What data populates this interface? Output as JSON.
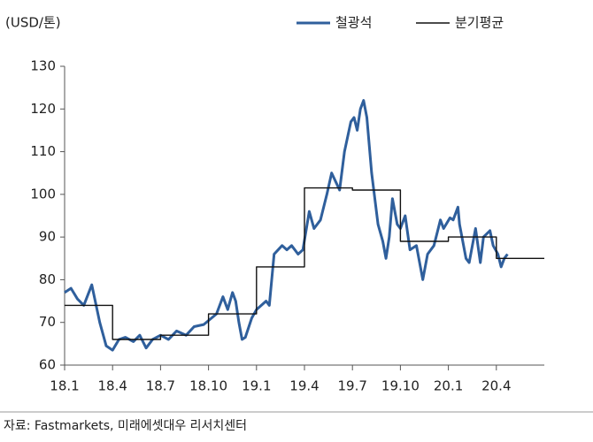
{
  "chart_data": {
    "type": "line",
    "y_unit_label": "(USD/톤)",
    "source": "자료: Fastmarkets, 미래에셋대우 리서치센터",
    "legend": "top-right",
    "grid": false,
    "xlim": [
      0,
      30
    ],
    "xticks": [
      {
        "value": 0,
        "label": "18.1"
      },
      {
        "value": 3,
        "label": "18.4"
      },
      {
        "value": 6,
        "label": "18.7"
      },
      {
        "value": 9,
        "label": "18.10"
      },
      {
        "value": 12,
        "label": "19.1"
      },
      {
        "value": 15,
        "label": "19.4"
      },
      {
        "value": 18,
        "label": "19.7"
      },
      {
        "value": 21,
        "label": "19.10"
      },
      {
        "value": 24,
        "label": "20.1"
      },
      {
        "value": 27,
        "label": "20.4"
      }
    ],
    "ylim": [
      60,
      130
    ],
    "yticks": [
      60,
      70,
      80,
      90,
      100,
      110,
      120,
      130
    ],
    "series": [
      {
        "name": "철광석",
        "color": "#2f5f9c",
        "width": 3,
        "x": [
          0,
          0.4,
          0.8,
          1.2,
          1.7,
          2.2,
          2.6,
          3.0,
          3.4,
          3.8,
          4.3,
          4.7,
          5.1,
          5.5,
          6.0,
          6.5,
          7.0,
          7.6,
          8.1,
          8.7,
          9.5,
          9.9,
          10.2,
          10.5,
          10.7,
          10.9,
          11.1,
          11.3,
          11.7,
          12.0,
          12.6,
          12.8,
          13.1,
          13.6,
          13.9,
          14.2,
          14.6,
          14.9,
          15.3,
          15.6,
          16.0,
          16.4,
          16.7,
          17.2,
          17.5,
          17.9,
          18.1,
          18.3,
          18.5,
          18.7,
          18.9,
          19.2,
          19.6,
          19.9,
          20.1,
          20.3,
          20.5,
          20.8,
          21.0,
          21.3,
          21.6,
          22.0,
          22.4,
          22.7,
          23.1,
          23.5,
          23.7,
          24.1,
          24.3,
          24.6,
          24.7,
          25.1,
          25.3,
          25.7,
          26.0,
          26.2,
          26.6,
          26.8,
          27.1,
          27.3,
          27.5,
          27.7
        ],
        "values": [
          77,
          78,
          75.5,
          74,
          78.8,
          70,
          64.5,
          63.5,
          66,
          66.5,
          65.5,
          67,
          64,
          66,
          67,
          66,
          68,
          67,
          69,
          69.5,
          72,
          76,
          73,
          77,
          75,
          70,
          66,
          66.5,
          71,
          73,
          75,
          74,
          86,
          88,
          87,
          88,
          86,
          87,
          96,
          92,
          94,
          100,
          105,
          101,
          110,
          117,
          118,
          115,
          120,
          122,
          118,
          105,
          93,
          89,
          85,
          90,
          99,
          93,
          92,
          95,
          87,
          88,
          80,
          86,
          88,
          94,
          92,
          94.5,
          94,
          97,
          93,
          85,
          84,
          92,
          84,
          90,
          91.5,
          88,
          86,
          83,
          85,
          86
        ]
      },
      {
        "name": "분기평균",
        "color": "#111111",
        "width": 1.4,
        "x": [
          0,
          3,
          3,
          6,
          6,
          9,
          9,
          12,
          12,
          15,
          15,
          18,
          18,
          21,
          21,
          24,
          24,
          27,
          27,
          30
        ],
        "values": [
          74,
          74,
          66,
          66,
          67,
          67,
          72,
          72,
          83,
          83,
          101.5,
          101.5,
          101,
          101,
          89,
          89,
          90,
          90,
          85,
          85
        ]
      }
    ]
  }
}
